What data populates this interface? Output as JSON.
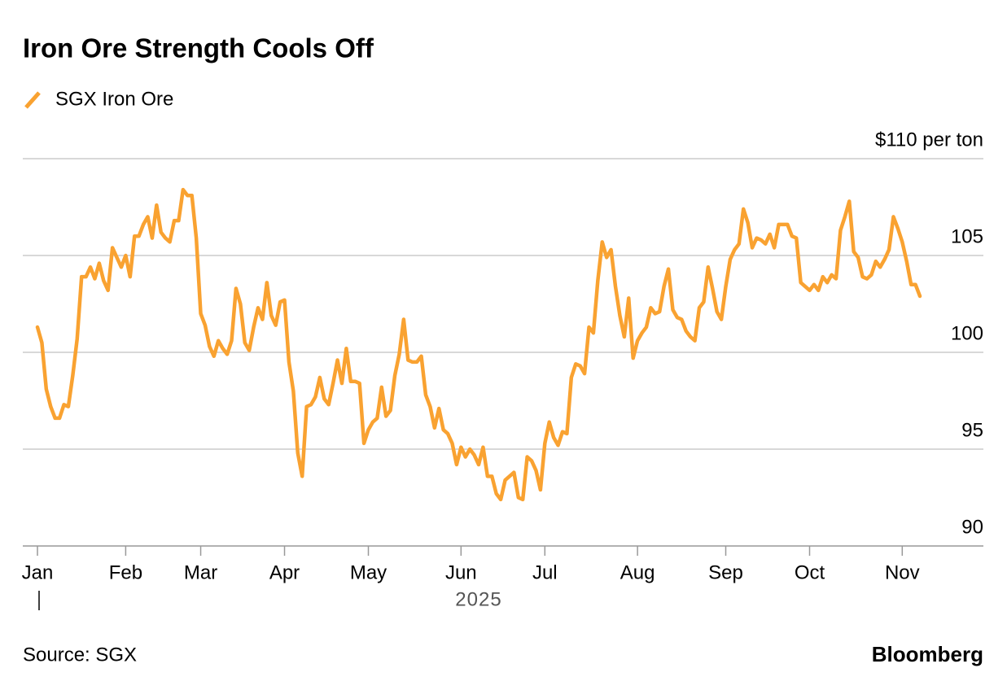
{
  "chart_data": {
    "type": "line",
    "title": "Iron Ore Strength Cools Off",
    "xlabel": "2025",
    "source": "Source: SGX",
    "brand": "Bloomberg",
    "categories": [
      "Jan",
      null,
      null,
      null,
      null,
      null,
      null,
      null,
      null,
      null,
      null,
      null,
      null,
      null,
      null,
      null,
      null,
      null,
      null,
      null,
      "Feb",
      null,
      null,
      null,
      null,
      null,
      null,
      null,
      null,
      null,
      null,
      null,
      null,
      null,
      null,
      null,
      null,
      "Mar",
      null,
      null,
      null,
      null,
      null,
      null,
      null,
      null,
      null,
      null,
      null,
      null,
      null,
      null,
      null,
      null,
      null,
      null,
      "Apr",
      null,
      null,
      null,
      null,
      null,
      null,
      null,
      null,
      null,
      null,
      null,
      null,
      null,
      null,
      null,
      null,
      null,
      null,
      "May",
      null,
      null,
      null,
      null,
      null,
      null,
      null,
      null,
      null,
      null,
      null,
      null,
      null,
      null,
      null,
      null,
      null,
      null,
      null,
      null,
      "Jun",
      null,
      null,
      null,
      null,
      null,
      null,
      null,
      null,
      null,
      null,
      null,
      null,
      null,
      null,
      null,
      null,
      null,
      null,
      "Jul",
      null,
      null,
      null,
      null,
      null,
      null,
      null,
      null,
      null,
      null,
      null,
      null,
      null,
      null,
      null,
      null,
      null,
      null,
      null,
      null,
      "Aug",
      null,
      null,
      null,
      null,
      null,
      null,
      null,
      null,
      null,
      null,
      null,
      null,
      null,
      null,
      null,
      null,
      null,
      null,
      null,
      "Sep",
      null,
      null,
      null,
      null,
      null,
      null,
      null,
      null,
      null,
      null,
      null,
      null,
      null,
      null,
      null,
      null,
      null,
      null,
      "Oct",
      null,
      null,
      null,
      null,
      null,
      null,
      null,
      null,
      null,
      null,
      null,
      null,
      null,
      null,
      null,
      null,
      null,
      null,
      null,
      null,
      "Nov",
      null,
      null,
      null,
      null
    ],
    "series": [
      {
        "name": "SGX Iron Ore",
        "color": "#f9a231",
        "values": [
          101.3,
          100.5,
          98.1,
          97.2,
          96.6,
          96.6,
          97.3,
          97.2,
          98.8,
          100.7,
          103.9,
          103.9,
          104.4,
          103.8,
          104.6,
          103.7,
          103.2,
          105.4,
          104.9,
          104.4,
          105.0,
          103.9,
          106.0,
          106.0,
          106.6,
          107.0,
          105.9,
          107.6,
          106.2,
          105.9,
          105.7,
          106.8,
          106.8,
          108.4,
          108.1,
          108.1,
          105.9,
          102.0,
          101.4,
          100.3,
          99.8,
          100.6,
          100.2,
          99.9,
          100.6,
          103.3,
          102.5,
          100.5,
          100.1,
          101.3,
          102.3,
          101.7,
          103.6,
          101.9,
          101.4,
          102.6,
          102.7,
          99.5,
          98.0,
          94.8,
          93.6,
          97.2,
          97.3,
          97.7,
          98.7,
          97.6,
          97.3,
          98.4,
          99.6,
          98.4,
          100.2,
          98.5,
          98.5,
          98.4,
          95.3,
          96.0,
          96.4,
          96.6,
          98.2,
          96.7,
          97.0,
          98.8,
          99.9,
          101.7,
          99.6,
          99.5,
          99.5,
          99.8,
          97.8,
          97.2,
          96.1,
          97.1,
          96.0,
          95.8,
          95.3,
          94.2,
          95.1,
          94.6,
          95.0,
          94.7,
          94.2,
          95.1,
          93.6,
          93.6,
          92.7,
          92.4,
          93.4,
          93.6,
          93.8,
          92.5,
          92.4,
          94.6,
          94.4,
          93.9,
          92.9,
          95.3,
          96.4,
          95.6,
          95.2,
          95.9,
          95.8,
          98.7,
          99.4,
          99.3,
          98.9,
          101.3,
          101.0,
          103.7,
          105.7,
          104.9,
          105.3,
          103.4,
          101.9,
          100.8,
          102.8,
          99.7,
          100.6,
          101.0,
          101.3,
          102.3,
          102.0,
          102.1,
          103.4,
          104.3,
          102.2,
          101.8,
          101.7,
          101.1,
          100.8,
          100.6,
          102.3,
          102.6,
          104.4,
          103.3,
          102.1,
          101.7,
          103.4,
          104.8,
          105.3,
          105.6,
          107.4,
          106.7,
          105.4,
          105.9,
          105.8,
          105.6,
          106.1,
          105.4,
          106.6,
          106.6,
          106.6,
          106.0,
          105.9,
          103.6,
          103.4,
          103.2,
          103.5,
          103.2,
          103.9,
          103.6,
          104.0,
          103.8,
          106.3,
          107.0,
          107.8,
          105.2,
          104.9,
          103.9,
          103.8,
          104.0,
          104.7,
          104.4,
          104.8,
          105.3,
          107.0,
          106.4,
          105.7,
          104.7,
          103.5,
          103.5,
          102.9
        ]
      }
    ],
    "ylim": [
      90,
      110
    ],
    "yticks": [
      90,
      95,
      100,
      105,
      {
        "value": 110,
        "label": "$110 per ton"
      }
    ],
    "grid": true
  }
}
